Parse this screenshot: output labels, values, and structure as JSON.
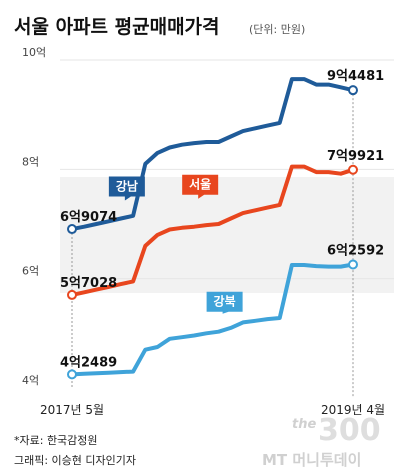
{
  "header": {
    "title": "서울 아파트 평균매매가격",
    "unit": "(단위: 만원)"
  },
  "footer": {
    "source": "*자료: 한국감정원",
    "credit": "그래픽: 이승현 디자인기자"
  },
  "watermark": {
    "the": "the",
    "number": "300",
    "brand": "MT 머니투데이"
  },
  "chart_data": {
    "type": "line",
    "title": "서울 아파트 평균매매가격",
    "ylabel": "",
    "xlabel": "",
    "x": [
      "2017-05",
      "2017-06",
      "2017-07",
      "2017-08",
      "2017-09",
      "2017-10",
      "2017-11",
      "2017-12",
      "2018-01",
      "2018-02",
      "2018-03",
      "2018-04",
      "2018-05",
      "2018-06",
      "2018-07",
      "2018-08",
      "2018-09",
      "2018-10",
      "2018-11",
      "2018-12",
      "2019-01",
      "2019-02",
      "2019-03",
      "2019-04"
    ],
    "x_tick_labels": [
      {
        "x": "2017-05",
        "label": "2017년 5월"
      },
      {
        "x": "2019-04",
        "label": "2019년 4월"
      }
    ],
    "ylim": [
      40000,
      100000
    ],
    "y_ticks": [
      {
        "value": 40000,
        "label": "4억"
      },
      {
        "value": 60000,
        "label": "6억"
      },
      {
        "value": 80000,
        "label": "8억"
      },
      {
        "value": 100000,
        "label": "10억"
      }
    ],
    "grid": false,
    "series": [
      {
        "name": "강남",
        "color": "#1f5b99",
        "values": [
          69074,
          69500,
          70000,
          70500,
          71000,
          71500,
          81000,
          83000,
          84000,
          84500,
          84800,
          85000,
          85000,
          86000,
          87000,
          87500,
          88000,
          88500,
          96500,
          96500,
          95500,
          95500,
          95000,
          94481
        ],
        "start_label": {
          "big": "6억",
          "small": "9074"
        },
        "end_label": {
          "big": "9억",
          "small": "4481"
        }
      },
      {
        "name": "서울",
        "color": "#e8461e",
        "values": [
          57028,
          57500,
          58000,
          58500,
          59000,
          59500,
          66000,
          68000,
          69000,
          69300,
          69500,
          69800,
          70000,
          71000,
          72000,
          72500,
          73000,
          73500,
          80500,
          80500,
          79500,
          79500,
          79200,
          79921
        ],
        "start_label": {
          "big": "5억",
          "small": "7028"
        },
        "end_label": {
          "big": "7억",
          "small": "9921"
        }
      },
      {
        "name": "강북",
        "color": "#3fa3d9",
        "values": [
          42489,
          42600,
          42700,
          42800,
          42900,
          43000,
          47000,
          47500,
          49000,
          49300,
          49600,
          50000,
          50300,
          51000,
          52000,
          52300,
          52600,
          52800,
          62500,
          62500,
          62300,
          62200,
          62200,
          62592
        ],
        "start_label": {
          "big": "4억",
          "small": "2489"
        },
        "end_label": {
          "big": "6억",
          "small": "2592"
        }
      }
    ]
  }
}
